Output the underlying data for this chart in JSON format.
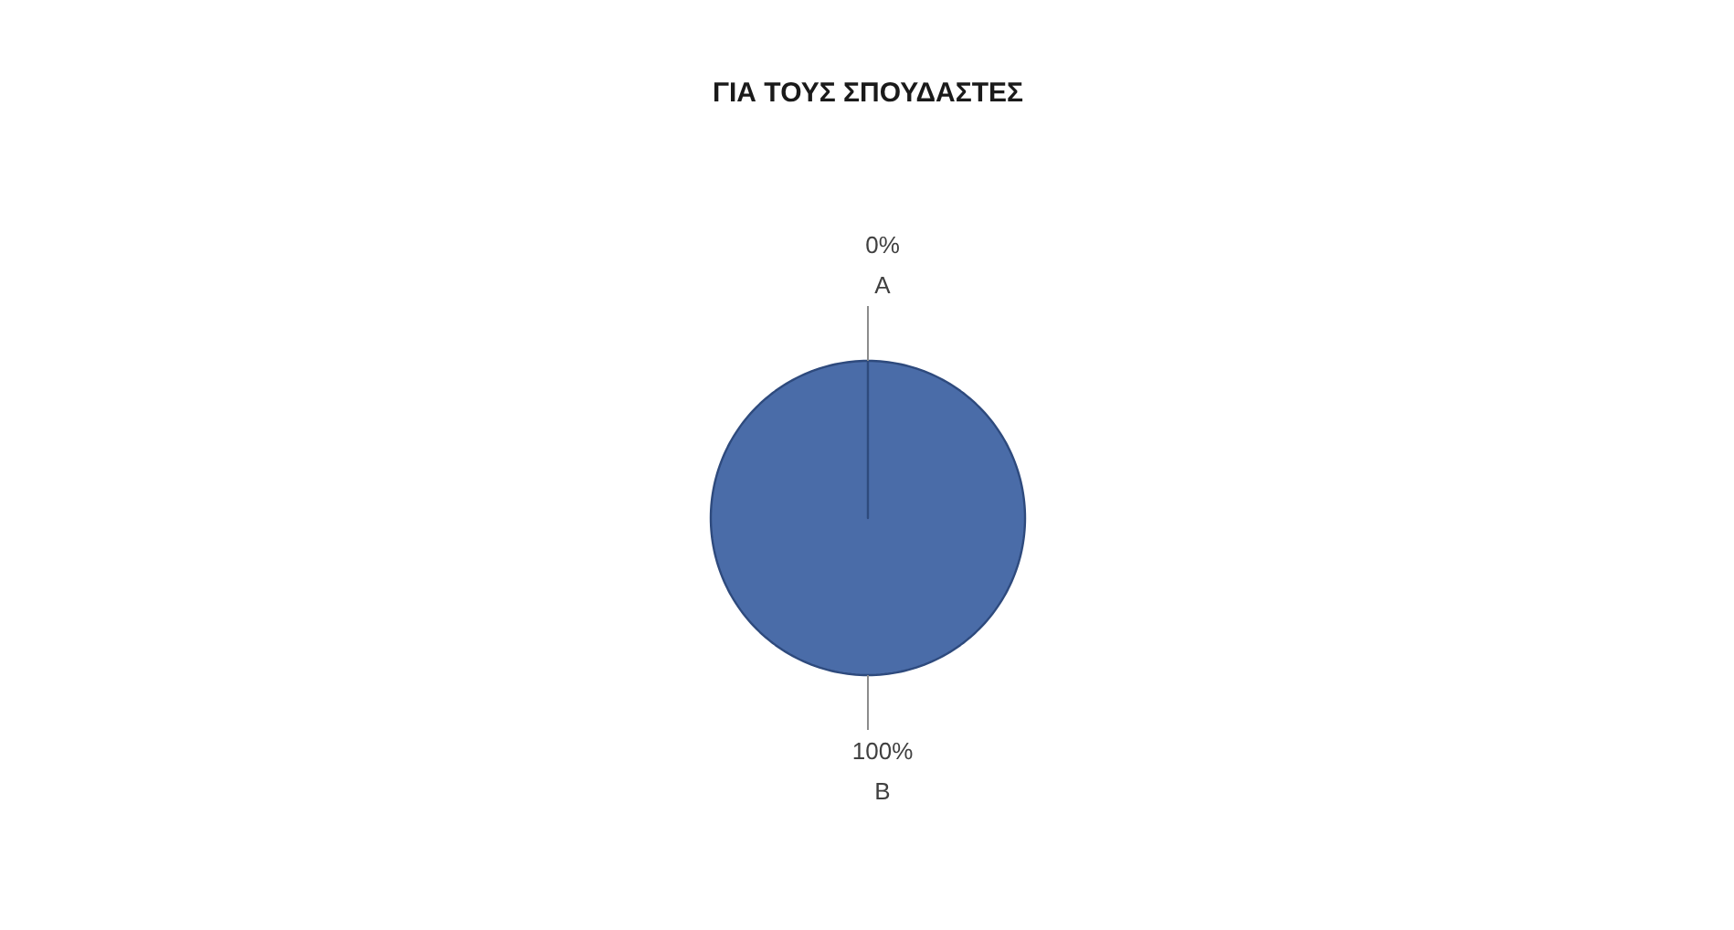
{
  "chart_data": {
    "type": "pie",
    "title": "ΓΙΑ ΤΟΥΣ ΣΠΟΥΔΑΣΤΕΣ",
    "categories": [
      "A",
      "B"
    ],
    "values": [
      0,
      100
    ],
    "colors": [
      "#4a6ca8",
      "#4a6ca8"
    ],
    "value_labels": [
      "0%",
      "100%"
    ]
  }
}
